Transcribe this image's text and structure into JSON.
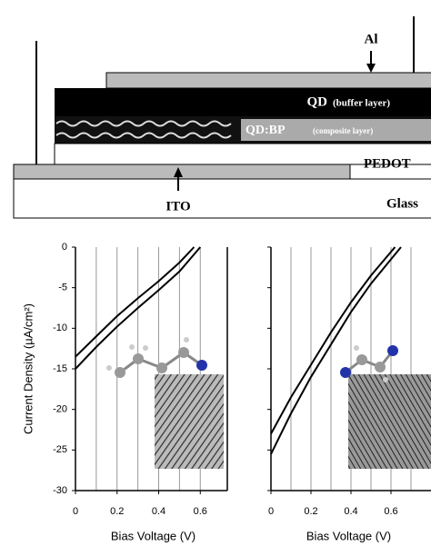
{
  "diagram": {
    "al": "Al",
    "qd": "QD",
    "qd_note": "(buffer layer)",
    "qdbp": "QD:BP",
    "qdbp_note": "(composite layer)",
    "pedot": "PEDOT",
    "ito": "ITO",
    "glass": "Glass"
  },
  "chart_data": [
    {
      "type": "line",
      "x_label": "Bias Voltage (V)",
      "y_label": "Current Density (µA/cm²)",
      "xlim": [
        0,
        0.73
      ],
      "ylim": [
        -30,
        0
      ],
      "xticks": [
        0,
        0.2,
        0.4,
        0.6
      ],
      "xgrid": [
        0.1,
        0.2,
        0.3,
        0.4,
        0.5,
        0.6
      ],
      "yticks": [
        0,
        -5,
        -10,
        -15,
        -20,
        -25,
        -30
      ],
      "show_ytick_labels": true,
      "series": [
        {
          "color": "#000000",
          "x": [
            0,
            0.1,
            0.2,
            0.3,
            0.4,
            0.5,
            0.57
          ],
          "values": [
            -13.5,
            -11,
            -8.5,
            -6.3,
            -4.2,
            -1.9,
            0
          ]
        },
        {
          "color": "#000000",
          "x": [
            0,
            0.1,
            0.2,
            0.3,
            0.4,
            0.5,
            0.6
          ],
          "values": [
            -15,
            -12.3,
            -9.8,
            -7.5,
            -5.3,
            -3,
            0
          ]
        }
      ]
    },
    {
      "type": "line",
      "x_label": "Bias Voltage (V)",
      "xlim": [
        0,
        0.8
      ],
      "ylim": [
        -30,
        0
      ],
      "xticks": [
        0,
        0.2,
        0.4,
        0.6
      ],
      "xgrid": [
        0.1,
        0.2,
        0.3,
        0.4,
        0.5,
        0.6,
        0.7
      ],
      "yticks": [
        0,
        -5,
        -10,
        -15,
        -20,
        -25,
        -30
      ],
      "show_ytick_labels": false,
      "series": [
        {
          "color": "#000000",
          "x": [
            0,
            0.1,
            0.2,
            0.3,
            0.4,
            0.5,
            0.62
          ],
          "values": [
            -23,
            -18.5,
            -14.5,
            -10.5,
            -6.8,
            -3.5,
            0
          ]
        },
        {
          "color": "#000000",
          "x": [
            0,
            0.1,
            0.2,
            0.3,
            0.4,
            0.5,
            0.65
          ],
          "values": [
            -25.5,
            -20.5,
            -16,
            -12,
            -8,
            -4.5,
            0
          ]
        }
      ]
    }
  ]
}
